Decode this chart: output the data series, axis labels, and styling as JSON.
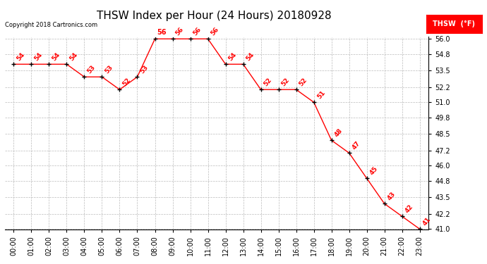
{
  "title": "THSW Index per Hour (24 Hours) 20180928",
  "copyright": "Copyright 2018 Cartronics.com",
  "legend_label": "THSW  (°F)",
  "hours": [
    0,
    1,
    2,
    3,
    4,
    5,
    6,
    7,
    8,
    9,
    10,
    11,
    12,
    13,
    14,
    15,
    16,
    17,
    18,
    19,
    20,
    21,
    22,
    23
  ],
  "x_labels": [
    "00:00",
    "01:00",
    "02:00",
    "03:00",
    "04:00",
    "05:00",
    "06:00",
    "07:00",
    "08:00",
    "09:00",
    "10:00",
    "11:00",
    "12:00",
    "13:00",
    "14:00",
    "15:00",
    "16:00",
    "17:00",
    "18:00",
    "19:00",
    "20:00",
    "21:00",
    "22:00",
    "23:00"
  ],
  "values": [
    54,
    54,
    54,
    54,
    53,
    53,
    52,
    53,
    56,
    56,
    56,
    56,
    54,
    54,
    52,
    52,
    52,
    51,
    48,
    47,
    45,
    43,
    42,
    41
  ],
  "ylim_min": 41.0,
  "ylim_max": 56.0,
  "yticks": [
    41.0,
    42.2,
    43.5,
    44.8,
    46.0,
    47.2,
    48.5,
    49.8,
    51.0,
    52.2,
    53.5,
    54.8,
    56.0
  ],
  "line_color": "red",
  "marker_color": "black",
  "marker": "+",
  "label_color": "red",
  "bg_color": "#ffffff",
  "grid_color": "#bbbbbb",
  "title_fontsize": 11,
  "label_fontsize": 6.5,
  "tick_fontsize": 7,
  "legend_bg": "red",
  "legend_fg": "white"
}
